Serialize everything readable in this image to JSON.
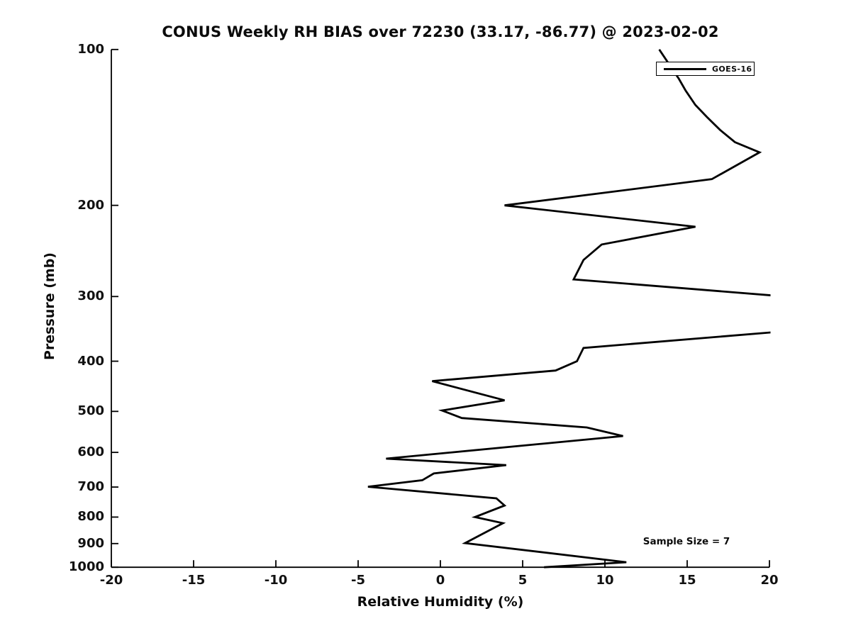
{
  "page": {
    "background": "#ffffff",
    "text_color": "#0b0b0b"
  },
  "chart_data": {
    "type": "line",
    "title": "CONUS Weekly RH BIAS over 72230 (33.17, -86.77) @ 2023-02-02",
    "xlabel": "Relative Humidity (%)",
    "ylabel": "Pressure (mb)",
    "xlim": [
      -20,
      20
    ],
    "ylim": [
      100,
      1000
    ],
    "y_scale": "log",
    "y_axis_inverted": true,
    "grid": false,
    "x_ticks": [
      -20,
      -15,
      -10,
      -5,
      0,
      5,
      10,
      15,
      20
    ],
    "y_ticks": [
      100,
      200,
      300,
      400,
      500,
      600,
      700,
      800,
      900,
      1000
    ],
    "line_color": "#000000",
    "annotation": {
      "text": "Sample Size = 7"
    },
    "legend": {
      "position": "upper-right",
      "entries": [
        {
          "label": "GOES-16",
          "color": "#000000"
        }
      ]
    },
    "series": [
      {
        "name": "GOES-16",
        "color": "#000000",
        "points_pressure_rh": [
          [
            100,
            13.3
          ],
          [
            114,
            14.5
          ],
          [
            120,
            14.9
          ],
          [
            128,
            15.5
          ],
          [
            135,
            16.2
          ],
          [
            143,
            17.0
          ],
          [
            151,
            17.9
          ],
          [
            158,
            19.4
          ],
          [
            178,
            16.5
          ],
          [
            200,
            3.9
          ],
          [
            220,
            15.5
          ],
          [
            238,
            9.8
          ],
          [
            255,
            8.7
          ],
          [
            278,
            8.1
          ],
          [
            300,
            21.0
          ],
          [
            350,
            21.0
          ],
          [
            377,
            8.7
          ],
          [
            400,
            8.3
          ],
          [
            417,
            7.0
          ],
          [
            437,
            -0.5
          ],
          [
            476,
            3.9
          ],
          [
            498,
            0.1
          ],
          [
            515,
            1.3
          ],
          [
            537,
            8.9
          ],
          [
            558,
            11.1
          ],
          [
            617,
            -3.3
          ],
          [
            635,
            4.0
          ],
          [
            659,
            -0.4
          ],
          [
            679,
            -1.1
          ],
          [
            699,
            -4.4
          ],
          [
            736,
            3.4
          ],
          [
            760,
            3.9
          ],
          [
            800,
            2.1
          ],
          [
            822,
            3.8
          ],
          [
            898,
            1.5
          ],
          [
            978,
            11.3
          ],
          [
            1000,
            6.3
          ]
        ]
      }
    ]
  }
}
